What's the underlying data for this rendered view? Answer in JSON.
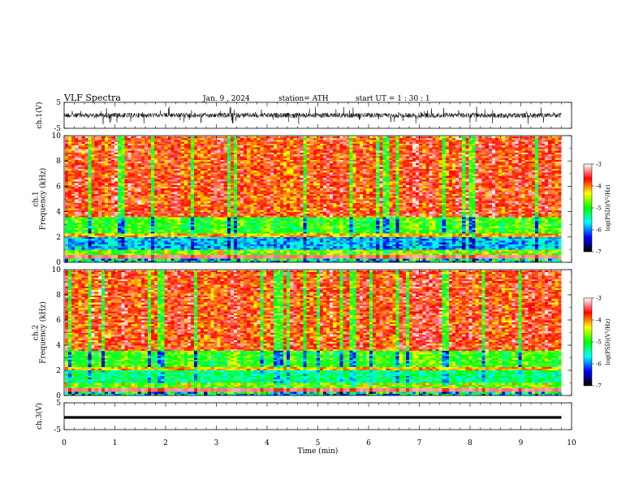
{
  "header": {
    "title": "VLF  Spectra",
    "date": "Jan.  9  , 2024",
    "station": "station= ATH",
    "start": "start  UT  =    1  : 30 : 1"
  },
  "chart_data": [
    {
      "type": "line",
      "panel": "ch1-waveform",
      "ylabel": "ch.1(V)",
      "ylim": [
        -5,
        5
      ],
      "yticks": [
        "5",
        "-5"
      ],
      "xlim": [
        0,
        10
      ]
    },
    {
      "type": "heatmap",
      "panel": "ch1-spectrogram",
      "ylabel": "ch.1\nFrequency  (kHz)",
      "ylim": [
        0,
        10
      ],
      "yticks": [
        "10",
        "8",
        "6",
        "4",
        "2",
        "0"
      ],
      "xlim": [
        0,
        10
      ],
      "colorbar": {
        "label": "log(PSD)(V²/Hz)",
        "range": [
          -7,
          -3
        ],
        "ticks": [
          "-3",
          "-4",
          "-5",
          "-6",
          "-7"
        ]
      }
    },
    {
      "type": "heatmap",
      "panel": "ch2-spectrogram",
      "ylabel": "ch.2\nFrequency  (kHz)",
      "ylim": [
        0,
        10
      ],
      "yticks": [
        "10",
        "8",
        "6",
        "4",
        "2",
        "0"
      ],
      "xlim": [
        0,
        10
      ],
      "colorbar": {
        "label": "log(PSD)(V²/Hz)",
        "range": [
          -7,
          -3
        ],
        "ticks": [
          "-3",
          "-4",
          "-5",
          "-6",
          "-7"
        ]
      }
    },
    {
      "type": "line",
      "panel": "ch3-waveform",
      "ylabel": "ch.3(V)",
      "ylim": [
        -5,
        5
      ],
      "yticks": [
        "5",
        "-5"
      ],
      "xlim": [
        0,
        10
      ]
    }
  ],
  "xaxis": {
    "label": "Time  (min)",
    "ticks": [
      "0",
      "1",
      "2",
      "3",
      "4",
      "5",
      "6",
      "7",
      "8",
      "9",
      "10"
    ],
    "data_end": 9.8
  },
  "colors": {
    "colormap": [
      "#000000",
      "#0000ff",
      "#00ffff",
      "#00ff00",
      "#ffff00",
      "#ff0000",
      "#ffffff"
    ]
  }
}
